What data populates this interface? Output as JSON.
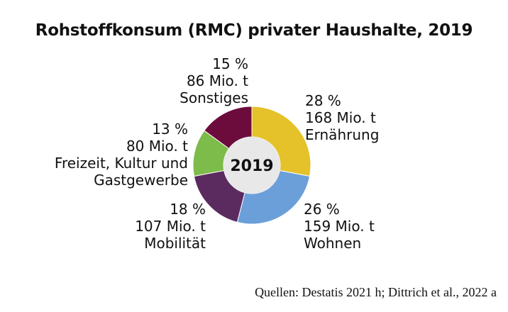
{
  "chart_data": {
    "type": "donut",
    "title": "Rohstoffkonsum (RMC) privater Haushalte, 2019",
    "center_label": "2019",
    "categories": [
      "Ernährung",
      "Wohnen",
      "Mobilität",
      "Freizeit, Kultur und Gastgewerbe",
      "Sonstiges"
    ],
    "values": [
      28,
      26,
      18,
      13,
      15
    ],
    "value_labels": [
      "28 %",
      "26 %",
      "18 %",
      "13 %",
      "15 %"
    ],
    "amounts": [
      168,
      159,
      107,
      80,
      86
    ],
    "amount_labels": [
      "168 Mio. t",
      "159 Mio. t",
      "107 Mio. t",
      "80 Mio. t",
      "86 Mio. t"
    ],
    "colors": [
      "#e5c12a",
      "#6b9fd9",
      "#5b2b5f",
      "#7dbb4a",
      "#6c0c3d"
    ],
    "source": "Quellen: Destatis 2021 h; Dittrich et al., 2022 a"
  }
}
